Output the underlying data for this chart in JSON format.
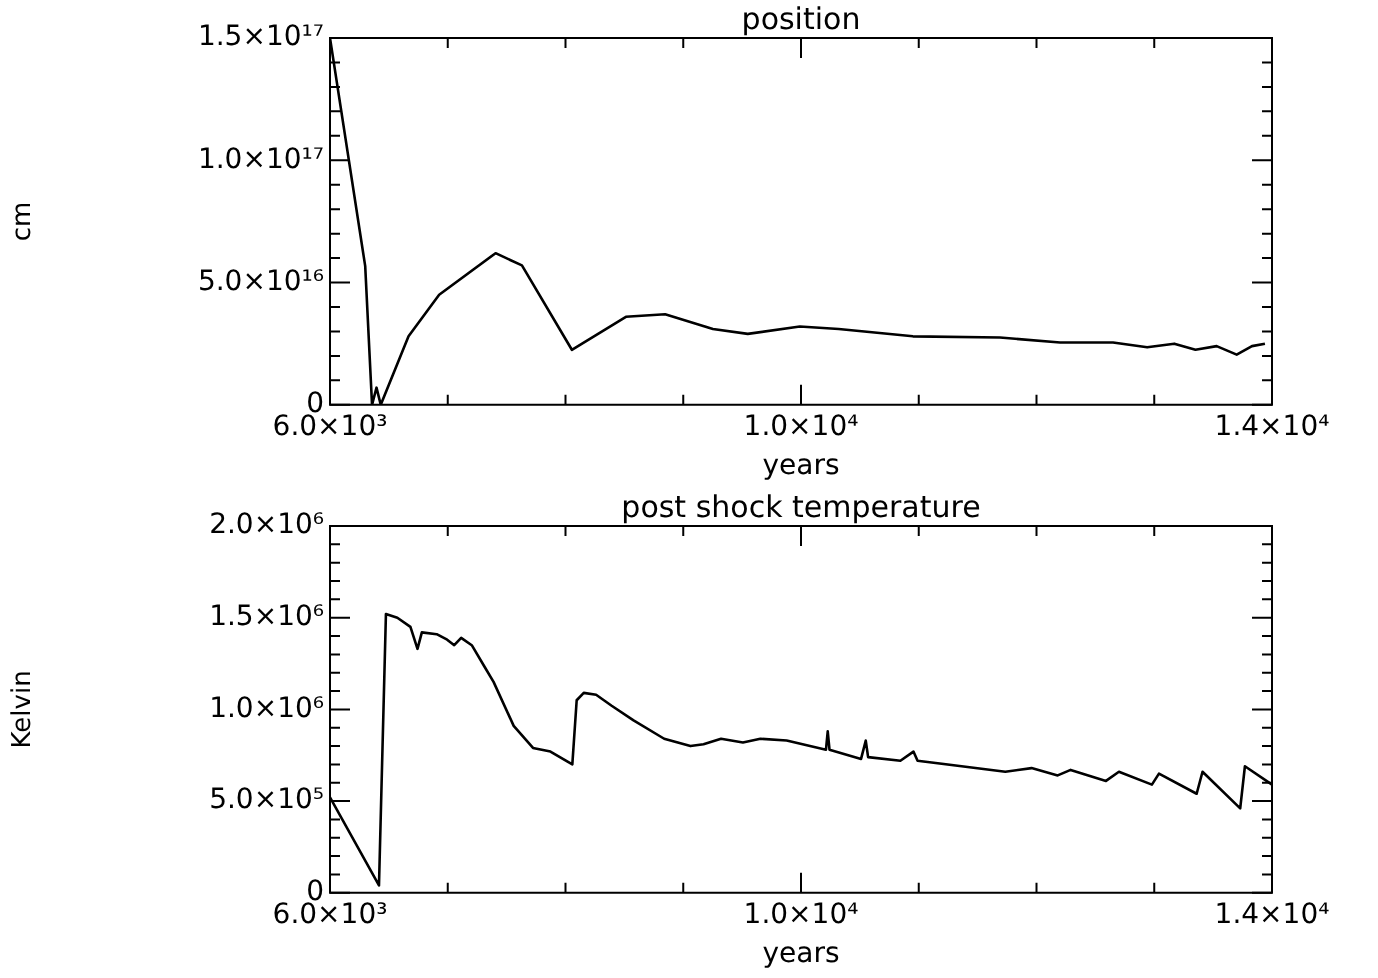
{
  "chart_data": [
    {
      "type": "line",
      "title": "position",
      "xlabel": "years",
      "ylabel": "cm",
      "grid": false,
      "marker": "none",
      "legend": false,
      "x": [
        6000,
        6299,
        6357,
        6395,
        6431,
        6667,
        6927,
        7406,
        7630,
        8054,
        8513,
        8846,
        9252,
        9548,
        9990,
        10320,
        10950,
        11690,
        12200,
        12650,
        12940,
        13170,
        13350,
        13530,
        13700,
        13830,
        13940
      ],
      "series": [
        {
          "color": "#000000",
          "values": [
            1.5e+17,
            5.67e+16,
            0,
            7000000000000000.0,
            0,
            2.8e+16,
            4.5e+16,
            6.2e+16,
            5.7e+16,
            2.25e+16,
            3.6e+16,
            3.7e+16,
            3.1e+16,
            2.9e+16,
            3.2e+16,
            3.1e+16,
            2.8e+16,
            2.75e+16,
            2.55e+16,
            2.55e+16,
            2.35e+16,
            2.5e+16,
            2.25e+16,
            2.4e+16,
            2.05e+16,
            2.4e+16,
            2.5e+16
          ]
        }
      ],
      "xlim": [
        6000,
        14000
      ],
      "xticks": [
        {
          "value": 6000,
          "label": "6.0×10³"
        },
        {
          "value": 7000,
          "label": null
        },
        {
          "value": 8000,
          "label": null
        },
        {
          "value": 9000,
          "label": null
        },
        {
          "value": 10000,
          "label": "1.0×10⁴"
        },
        {
          "value": 11000,
          "label": null
        },
        {
          "value": 12000,
          "label": null
        },
        {
          "value": 13000,
          "label": null
        },
        {
          "value": 14000,
          "label": "1.4×10⁴"
        }
      ],
      "ylim": [
        0,
        1.5e+17
      ],
      "yticks": [
        0,
        {
          "value": 1e+16,
          "label": null
        },
        {
          "value": 2e+16,
          "label": null
        },
        {
          "value": 3e+16,
          "label": null
        },
        {
          "value": 4e+16,
          "label": null
        },
        {
          "value": 5e+16,
          "label": "5.0×10¹⁶"
        },
        {
          "value": 6e+16,
          "label": null
        },
        {
          "value": 7e+16,
          "label": null
        },
        {
          "value": 8e+16,
          "label": null
        },
        {
          "value": 9e+16,
          "label": null
        },
        {
          "value": 1e+17,
          "label": "1.0×10¹⁷"
        },
        {
          "value": 1.1e+17,
          "label": null
        },
        {
          "value": 1.2e+17,
          "label": null
        },
        {
          "value": 1.3e+17,
          "label": null
        },
        {
          "value": 1.4e+17,
          "label": null
        },
        {
          "value": 1.5e+17,
          "label": "1.5×10¹⁷"
        }
      ]
    },
    {
      "type": "line",
      "title": "post shock temperature",
      "xlabel": "years",
      "ylabel": "Kelvin",
      "grid": false,
      "marker": "none",
      "legend": false,
      "x": [
        6000,
        6416,
        6475,
        6572,
        6683,
        6743,
        6780,
        6906,
        6995,
        7055,
        7114,
        7204,
        7315,
        7389,
        7560,
        7724,
        7872,
        8058,
        8095,
        8155,
        8260,
        8392,
        8578,
        8838,
        9061,
        9172,
        9321,
        9507,
        9655,
        9878,
        10212,
        10227,
        10242,
        10510,
        10550,
        10570,
        10844,
        10955,
        10990,
        11364,
        11735,
        11958,
        12180,
        12290,
        12590,
        12700,
        12980,
        13040,
        13360,
        13410,
        13730,
        13770,
        14000
      ],
      "series": [
        {
          "color": "#000000",
          "values": [
            520000.0,
            40000.0,
            1520000.0,
            1500000.0,
            1450000.0,
            1330000.0,
            1420000.0,
            1410000.0,
            1380000.0,
            1350000.0,
            1390000.0,
            1350000.0,
            1230000.0,
            1150000.0,
            910000.0,
            790000.0,
            770000.0,
            700000.0,
            1050000.0,
            1090000.0,
            1080000.0,
            1020000.0,
            940000.0,
            840000.0,
            800000.0,
            810000.0,
            840000.0,
            820000.0,
            840000.0,
            830000.0,
            780000.0,
            880000.0,
            780000.0,
            730000.0,
            830000.0,
            740000.0,
            720000.0,
            770000.0,
            720000.0,
            690000.0,
            660000.0,
            680000.0,
            640000.0,
            670000.0,
            610000.0,
            660000.0,
            590000.0,
            650000.0,
            540000.0,
            660000.0,
            460000.0,
            690000.0,
            590000.0
          ]
        }
      ],
      "xlim": [
        6000,
        14000
      ],
      "xticks": [
        {
          "value": 6000,
          "label": "6.0×10³"
        },
        {
          "value": 7000,
          "label": null
        },
        {
          "value": 8000,
          "label": null
        },
        {
          "value": 9000,
          "label": null
        },
        {
          "value": 10000,
          "label": "1.0×10⁴"
        },
        {
          "value": 11000,
          "label": null
        },
        {
          "value": 12000,
          "label": null
        },
        {
          "value": 13000,
          "label": null
        },
        {
          "value": 14000,
          "label": "1.4×10⁴"
        }
      ],
      "ylim": [
        0,
        2000000.0
      ],
      "yticks": [
        0,
        {
          "value": 100000.0,
          "label": null
        },
        {
          "value": 200000.0,
          "label": null
        },
        {
          "value": 300000.0,
          "label": null
        },
        {
          "value": 400000.0,
          "label": null
        },
        {
          "value": 500000.0,
          "label": "5.0×10⁵"
        },
        {
          "value": 600000.0,
          "label": null
        },
        {
          "value": 700000.0,
          "label": null
        },
        {
          "value": 800000.0,
          "label": null
        },
        {
          "value": 900000.0,
          "label": null
        },
        {
          "value": 1000000.0,
          "label": "1.0×10⁶"
        },
        {
          "value": 1100000.0,
          "label": null
        },
        {
          "value": 1200000.0,
          "label": null
        },
        {
          "value": 1300000.0,
          "label": null
        },
        {
          "value": 1400000.0,
          "label": null
        },
        {
          "value": 1500000.0,
          "label": "1.5×10⁶"
        },
        {
          "value": 1600000.0,
          "label": null
        },
        {
          "value": 1700000.0,
          "label": null
        },
        {
          "value": 1800000.0,
          "label": null
        },
        {
          "value": 1900000.0,
          "label": null
        },
        {
          "value": 2000000.0,
          "label": "2.0×10⁶"
        }
      ]
    }
  ]
}
